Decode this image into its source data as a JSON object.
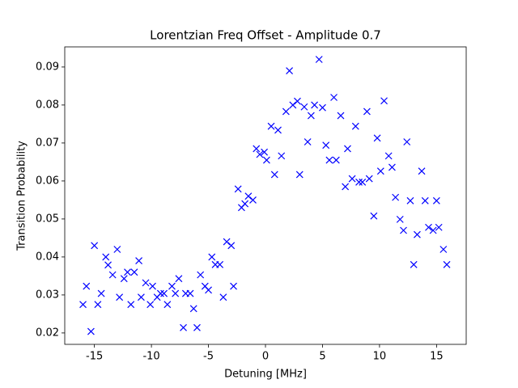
{
  "chart_data": {
    "type": "scatter",
    "title": "Lorentzian Freq Offset - Amplitude 0.7",
    "x_label": "Detuning [MHz]",
    "y_label": "Transition Probability",
    "series": [
      {
        "color": "#0000ff",
        "marker": "x",
        "x": [
          -16.0,
          -15.7,
          -15.3,
          -15.0,
          -14.7,
          -14.4,
          -14.0,
          -13.8,
          -13.4,
          -13.0,
          -12.8,
          -12.4,
          -12.1,
          -11.8,
          -11.5,
          -11.1,
          -10.9,
          -10.5,
          -10.1,
          -9.9,
          -9.5,
          -9.2,
          -8.9,
          -8.6,
          -8.2,
          -7.9,
          -7.6,
          -7.2,
          -7.0,
          -6.6,
          -6.3,
          -6.0,
          -5.7,
          -5.3,
          -5.0,
          -4.7,
          -4.4,
          -4.0,
          -3.7,
          -3.4,
          -3.0,
          -2.8,
          -2.4,
          -2.1,
          -1.8,
          -1.5,
          -1.1,
          -0.8,
          -0.5,
          -0.1,
          0.1,
          0.5,
          0.8,
          1.1,
          1.4,
          1.8,
          2.1,
          2.4,
          2.8,
          3.0,
          3.4,
          3.7,
          4.0,
          4.3,
          4.7,
          5.0,
          5.3,
          5.6,
          6.0,
          6.2,
          6.6,
          7.0,
          7.2,
          7.6,
          7.9,
          8.2,
          8.5,
          8.9,
          9.1,
          9.5,
          9.8,
          10.1,
          10.4,
          10.8,
          11.1,
          11.4,
          11.8,
          12.1,
          12.4,
          12.7,
          13.0,
          13.3,
          13.7,
          14.0,
          14.3,
          14.7,
          15.0,
          15.2,
          15.6,
          15.9
        ],
        "values": [
          0.0275,
          0.0323,
          0.0204,
          0.043,
          0.0275,
          0.0304,
          0.04,
          0.0379,
          0.0353,
          0.042,
          0.0294,
          0.0343,
          0.036,
          0.0275,
          0.036,
          0.039,
          0.0294,
          0.0332,
          0.0275,
          0.0323,
          0.0294,
          0.0304,
          0.0304,
          0.0275,
          0.0323,
          0.0304,
          0.0343,
          0.0214,
          0.0304,
          0.0304,
          0.0264,
          0.0214,
          0.0353,
          0.0323,
          0.0313,
          0.04,
          0.038,
          0.038,
          0.0294,
          0.044,
          0.043,
          0.0323,
          0.0579,
          0.053,
          0.054,
          0.056,
          0.055,
          0.0685,
          0.067,
          0.0676,
          0.0655,
          0.0744,
          0.0617,
          0.0734,
          0.0666,
          0.0783,
          0.089,
          0.08,
          0.081,
          0.0617,
          0.0795,
          0.0703,
          0.0772,
          0.08,
          0.092,
          0.0793,
          0.0694,
          0.0655,
          0.082,
          0.0655,
          0.0772,
          0.0585,
          0.0685,
          0.0606,
          0.0744,
          0.0597,
          0.0597,
          0.0783,
          0.0606,
          0.0508,
          0.0713,
          0.0626,
          0.0811,
          0.0666,
          0.0636,
          0.0557,
          0.0499,
          0.047,
          0.0703,
          0.0548,
          0.038,
          0.0459,
          0.0626,
          0.0548,
          0.0478,
          0.047,
          0.0548,
          0.0478,
          0.042,
          0.038
        ]
      }
    ],
    "xlim": [
      -17.6,
      17.6
    ],
    "ylim": [
      0.017,
      0.0953
    ],
    "xticks": [
      -15,
      -10,
      -5,
      0,
      5,
      10,
      15
    ],
    "yticks": [
      0.02,
      0.03,
      0.04,
      0.05,
      0.06,
      0.07,
      0.08,
      0.09
    ],
    "grid": false
  }
}
